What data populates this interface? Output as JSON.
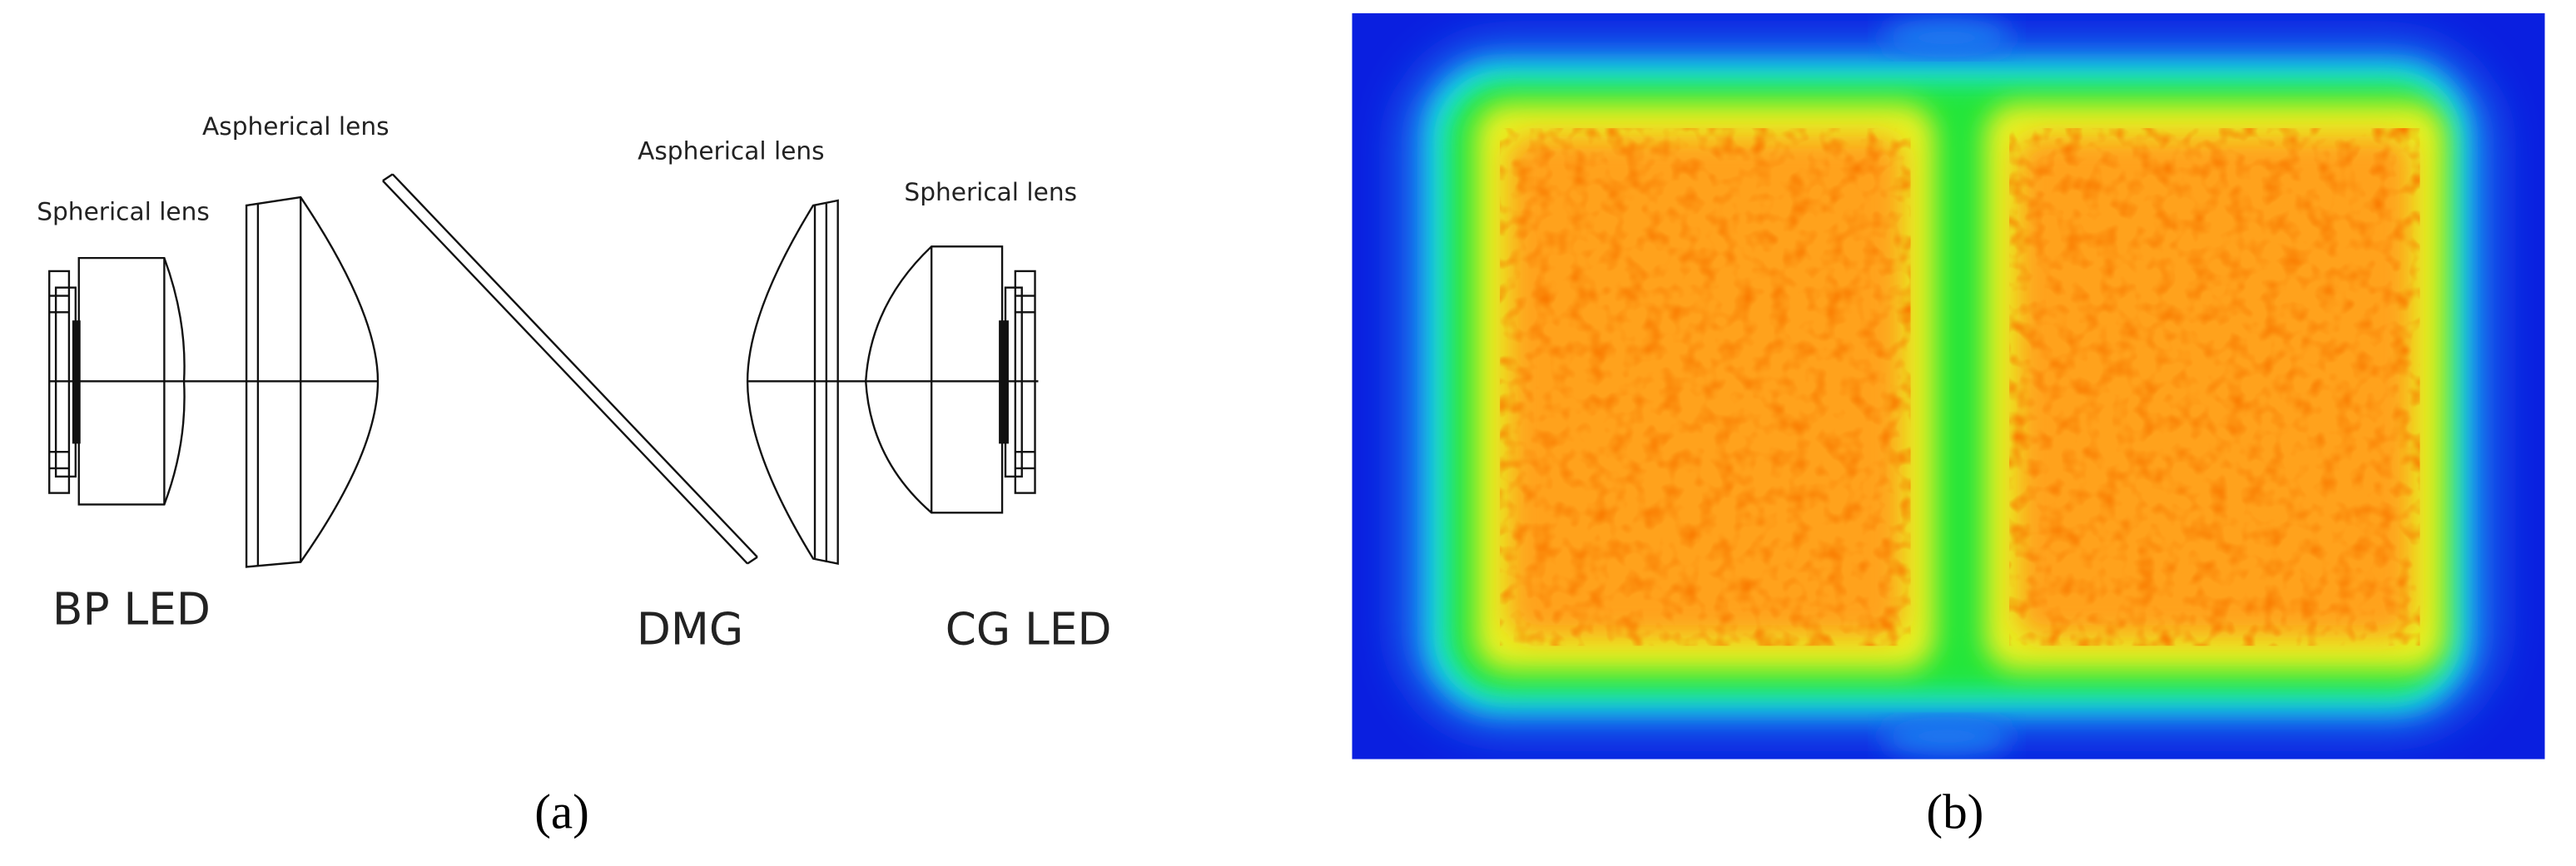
{
  "panel_a": {
    "labels": [
      "Aspherical lens",
      "Spherical lens",
      "Aspherical lens",
      "Spherical lens",
      "BP LED",
      "DMG",
      "CG LED"
    ],
    "caption": "(a)"
  },
  "panel_b": {
    "caption": "(b)"
  }
}
